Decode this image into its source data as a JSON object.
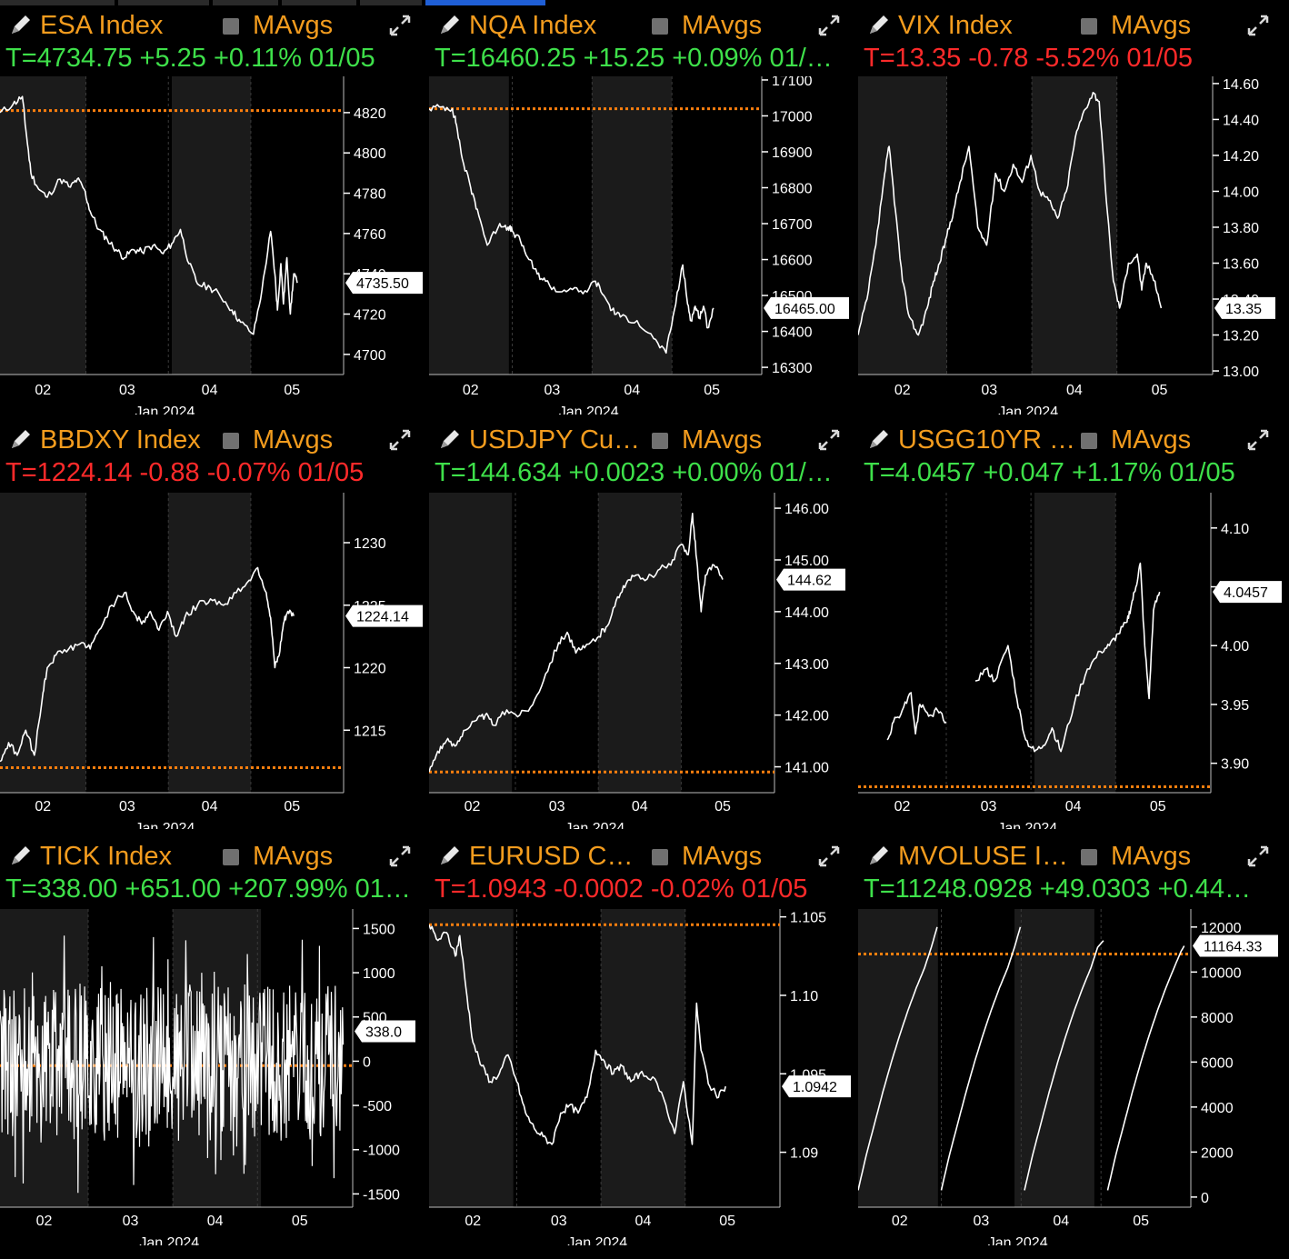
{
  "colors": {
    "background": "#000000",
    "title": "#f39c1e",
    "up": "#3ee04a",
    "down": "#ff2a2a",
    "series": "#ffffff",
    "ma_line": "#ff7f0e",
    "session_shade": "#1b1b1b"
  },
  "ma_label": "MAvgs",
  "month_label": "Jan 2024",
  "days": [
    "02",
    "03",
    "04",
    "05"
  ],
  "panels": [
    {
      "title": "ESA Index",
      "quote": "T=4734.75 +5.25 +0.11% 01/05",
      "direction": "up",
      "last_tag": "4735.50"
    },
    {
      "title": "NQA Index",
      "quote": "T=16460.25 +15.25 +0.09% 01/…",
      "direction": "up",
      "last_tag": "16465.00"
    },
    {
      "title": "VIX Index",
      "quote": "T=13.35 -0.78 -5.52% 01/05",
      "direction": "down",
      "last_tag": "13.35"
    },
    {
      "title": "BBDXY Index",
      "quote": "T=1224.14 -0.88 -0.07% 01/05",
      "direction": "down",
      "last_tag": "1224.14"
    },
    {
      "title": "USDJPY Cur…",
      "quote": "T=144.634 +0.0023 +0.00% 01/…",
      "direction": "up",
      "last_tag": "144.62"
    },
    {
      "title": "USGG10YR I…",
      "quote": "T=4.0457 +0.047 +1.17% 01/05",
      "direction": "up",
      "last_tag": "4.0457"
    },
    {
      "title": "TICK Index",
      "quote": "T=338.00 +651.00 +207.99% 01…",
      "direction": "up",
      "last_tag": "338.0"
    },
    {
      "title": "EURUSD Cur…",
      "quote": "T=1.0943 -0.0002 -0.02% 01/05",
      "direction": "down",
      "last_tag": "1.0942"
    },
    {
      "title": "MVOLUSE In…",
      "quote": "T=11248.0928 +49.0303 +0.44…",
      "direction": "up",
      "last_tag": "11164.33"
    }
  ],
  "chart_data": [
    {
      "type": "line",
      "title": "ESA Index",
      "xlabel": "Jan 2024",
      "x_ticks": [
        "02",
        "03",
        "04",
        "05"
      ],
      "ylim": [
        4690,
        4838
      ],
      "y_ticks": [
        "4820",
        "4800",
        "4780",
        "4760",
        "4740",
        "4720",
        "4700"
      ],
      "ma_level": 4821,
      "series": [
        {
          "x": [
            0.0,
            0.15,
            0.26,
            0.3,
            0.36,
            0.45,
            0.55,
            0.7,
            0.82,
            0.9,
            0.98,
            1.05,
            1.15,
            1.25,
            1.35,
            1.45,
            1.55,
            1.65,
            1.78,
            1.9,
            2.0,
            2.1,
            2.2,
            2.3,
            2.45,
            2.55,
            2.7,
            2.8,
            2.95,
            3.05,
            3.15,
            3.2,
            3.23,
            3.27,
            3.3,
            3.34,
            3.38,
            3.42,
            3.46
          ],
          "y": [
            4820,
            4824,
            4828,
            4812,
            4790,
            4782,
            4778,
            4787,
            4783,
            4787,
            4782,
            4771,
            4762,
            4757,
            4752,
            4748,
            4752,
            4751,
            4754,
            4750,
            4755,
            4762,
            4745,
            4735,
            4733,
            4730,
            4722,
            4716,
            4710,
            4732,
            4761,
            4740,
            4722,
            4745,
            4725,
            4748,
            4720,
            4740,
            4735.5
          ]
        }
      ]
    },
    {
      "type": "line",
      "title": "NQA Index",
      "xlabel": "Jan 2024",
      "x_ticks": [
        "02",
        "03",
        "04",
        "05"
      ],
      "ylim": [
        16280,
        17110
      ],
      "y_ticks": [
        "17100",
        "17000",
        "16900",
        "16800",
        "16700",
        "16600",
        "16500",
        "16400",
        "16300"
      ],
      "ma_level": 17020,
      "series": [
        {
          "x": [
            0.0,
            0.15,
            0.28,
            0.33,
            0.4,
            0.5,
            0.58,
            0.7,
            0.85,
            0.95,
            1.0,
            1.1,
            1.2,
            1.3,
            1.4,
            1.55,
            1.7,
            1.85,
            2.0,
            2.1,
            2.2,
            2.3,
            2.5,
            2.7,
            2.85,
            2.95,
            3.05,
            3.1,
            3.15,
            3.2,
            3.25,
            3.3,
            3.35,
            3.42
          ],
          "y": [
            17020,
            17025,
            17020,
            16975,
            16880,
            16800,
            16740,
            16640,
            16700,
            16690,
            16680,
            16650,
            16600,
            16560,
            16540,
            16510,
            16520,
            16505,
            16540,
            16500,
            16460,
            16440,
            16430,
            16380,
            16340,
            16460,
            16585,
            16490,
            16430,
            16470,
            16440,
            16470,
            16410,
            16465
          ]
        }
      ]
    },
    {
      "type": "line",
      "title": "VIX Index",
      "xlabel": "Jan 2024",
      "x_ticks": [
        "02",
        "03",
        "04",
        "05"
      ],
      "ylim": [
        12.98,
        14.64
      ],
      "y_ticks": [
        "14.60",
        "14.40",
        "14.20",
        "14.00",
        "13.80",
        "13.60",
        "13.40",
        "13.20",
        "13.00"
      ],
      "ma_level": null,
      "series": [
        {
          "x": [
            0.0,
            0.1,
            0.2,
            0.3,
            0.35,
            0.42,
            0.5,
            0.58,
            0.68,
            0.78,
            0.85,
            0.92,
            1.0,
            1.08,
            1.15,
            1.25,
            1.35,
            1.45,
            1.55,
            1.65,
            1.75,
            1.85,
            1.95,
            2.05,
            2.15,
            2.25,
            2.35,
            2.45,
            2.55,
            2.65,
            2.72,
            2.8,
            2.88,
            2.95,
            3.05,
            3.15,
            3.2,
            3.25,
            3.35,
            3.42
          ],
          "y": [
            13.2,
            13.4,
            13.7,
            14.1,
            14.25,
            13.9,
            13.5,
            13.3,
            13.2,
            13.35,
            13.5,
            13.6,
            13.75,
            13.9,
            14.05,
            14.25,
            13.8,
            13.7,
            14.1,
            14.0,
            14.15,
            14.05,
            14.2,
            14.0,
            13.95,
            13.85,
            14.0,
            14.3,
            14.45,
            14.55,
            14.5,
            13.95,
            13.5,
            13.35,
            13.6,
            13.65,
            13.45,
            13.6,
            13.5,
            13.35
          ]
        }
      ]
    },
    {
      "type": "line",
      "title": "BBDXY Index",
      "xlabel": "Jan 2024",
      "x_ticks": [
        "02",
        "03",
        "04",
        "05"
      ],
      "ylim": [
        1210,
        1234
      ],
      "y_ticks": [
        "1230",
        "1225",
        "1220",
        "1215"
      ],
      "ma_level": 1212,
      "series": [
        {
          "x": [
            0.0,
            0.1,
            0.2,
            0.3,
            0.4,
            0.5,
            0.55,
            0.65,
            0.8,
            0.95,
            1.05,
            1.15,
            1.3,
            1.45,
            1.55,
            1.65,
            1.75,
            1.85,
            1.95,
            2.05,
            2.15,
            2.3,
            2.45,
            2.6,
            2.75,
            2.9,
            3.0,
            3.1,
            3.15,
            3.2,
            3.25,
            3.3,
            3.35,
            3.42
          ],
          "y": [
            1212.5,
            1214,
            1213,
            1215,
            1213,
            1218,
            1220,
            1221,
            1221.5,
            1222,
            1221.5,
            1223,
            1225,
            1226,
            1224.5,
            1223.5,
            1224.5,
            1223,
            1224.5,
            1222.5,
            1224,
            1225,
            1225.5,
            1225,
            1226,
            1227,
            1228,
            1226,
            1224,
            1220,
            1221,
            1223.5,
            1224.5,
            1224.14
          ]
        }
      ]
    },
    {
      "type": "line",
      "title": "USDJPY Cur…",
      "xlabel": "Jan 2024",
      "x_ticks": [
        "02",
        "03",
        "04",
        "05"
      ],
      "ylim": [
        140.5,
        146.3
      ],
      "y_ticks": [
        "146.00",
        "145.00",
        "144.00",
        "143.00",
        "142.00",
        "141.00"
      ],
      "ma_level": 140.9,
      "series": [
        {
          "x": [
            0.0,
            0.1,
            0.2,
            0.3,
            0.4,
            0.55,
            0.65,
            0.75,
            0.9,
            1.05,
            1.2,
            1.35,
            1.5,
            1.6,
            1.7,
            1.8,
            1.95,
            2.05,
            2.15,
            2.25,
            2.35,
            2.5,
            2.65,
            2.8,
            2.92,
            3.0,
            3.05,
            3.1,
            3.15,
            3.2,
            3.3,
            3.4
          ],
          "y": [
            140.9,
            141.3,
            141.5,
            141.4,
            141.7,
            141.9,
            142.0,
            141.8,
            142.1,
            142.0,
            142.2,
            142.8,
            143.4,
            143.6,
            143.2,
            143.3,
            143.5,
            143.7,
            144.1,
            144.5,
            144.7,
            144.6,
            144.8,
            144.9,
            145.3,
            145.1,
            145.9,
            145.0,
            144.0,
            144.7,
            144.9,
            144.62
          ]
        }
      ]
    },
    {
      "type": "line",
      "title": "USGG10YR I…",
      "xlabel": "Jan 2024",
      "x_ticks": [
        "02",
        "03",
        "04",
        "05"
      ],
      "ylim": [
        3.875,
        4.13
      ],
      "y_ticks": [
        "4.10",
        "4.05",
        "4.00",
        "3.95",
        "3.90"
      ],
      "ma_level": 3.88,
      "series": [
        {
          "x": [
            0.33,
            0.4,
            0.5,
            0.6,
            0.65,
            0.7,
            0.8,
            0.9,
            1.0
          ],
          "y": [
            3.92,
            3.935,
            3.945,
            3.96,
            3.925,
            3.95,
            3.94,
            3.945,
            3.935
          ]
        },
        {
          "x": [
            1.33,
            1.45,
            1.55,
            1.7,
            1.8,
            1.9,
            2.0,
            2.1,
            2.2,
            2.3,
            2.45,
            2.6,
            2.75,
            2.85,
            2.95,
            3.05,
            3.1,
            3.15,
            3.2,
            3.25,
            3.3,
            3.35,
            3.42
          ],
          "y": [
            3.97,
            3.98,
            3.97,
            4.0,
            3.955,
            3.92,
            3.91,
            3.915,
            3.93,
            3.91,
            3.95,
            3.98,
            3.995,
            4.0,
            4.01,
            4.02,
            4.035,
            4.05,
            4.07,
            4.0,
            3.955,
            4.03,
            4.0457
          ]
        }
      ]
    },
    {
      "type": "line",
      "title": "TICK Index",
      "xlabel": "Jan 2024",
      "x_ticks": [
        "02",
        "03",
        "04",
        "05"
      ],
      "ylim": [
        -1650,
        1720
      ],
      "y_ticks": [
        "1500",
        "1000",
        "500",
        "0",
        "-500",
        "-1000",
        "-1500"
      ],
      "ma_level": -50,
      "series": [
        {
          "x": [],
          "y": []
        }
      ]
    },
    {
      "type": "line",
      "title": "EURUSD Cur…",
      "xlabel": "Jan 2024",
      "x_ticks": [
        "02",
        "03",
        "04",
        "05"
      ],
      "ylim": [
        1.0865,
        1.1055
      ],
      "y_ticks": [
        "1.105",
        "1.10",
        "1.095",
        "1.09"
      ],
      "ma_level": 1.1045,
      "series": [
        {
          "x": [
            0.0,
            0.1,
            0.2,
            0.3,
            0.35,
            0.42,
            0.5,
            0.6,
            0.7,
            0.8,
            0.9,
            1.0,
            1.1,
            1.2,
            1.3,
            1.4,
            1.5,
            1.6,
            1.7,
            1.8,
            1.9,
            2.0,
            2.1,
            2.2,
            2.3,
            2.4,
            2.55,
            2.7,
            2.8,
            2.9,
            3.0,
            3.05,
            3.1,
            3.2,
            3.3,
            3.38
          ],
          "y": [
            1.1045,
            1.1035,
            1.104,
            1.1025,
            1.1038,
            1.1005,
            1.097,
            1.0955,
            1.0945,
            1.095,
            1.0962,
            1.0945,
            1.0925,
            1.0915,
            1.091,
            1.0905,
            1.0925,
            1.093,
            1.0925,
            1.0935,
            1.0965,
            1.0958,
            1.095,
            1.0955,
            1.0945,
            1.095,
            1.0948,
            1.093,
            1.0912,
            1.0945,
            1.0905,
            1.0995,
            1.0965,
            1.0942,
            1.0935,
            1.0942
          ]
        }
      ]
    },
    {
      "type": "line",
      "title": "MVOLUSE In…",
      "xlabel": "Jan 2024",
      "x_ticks": [
        "02",
        "03",
        "04",
        "05"
      ],
      "ylim": [
        -450,
        12800
      ],
      "y_ticks": [
        "12000",
        "10000",
        "8000",
        "6000",
        "4000",
        "2000",
        "0"
      ],
      "ma_level": 10800,
      "series": [
        {
          "x": [
            0.0,
            0.1,
            0.2,
            0.3,
            0.4,
            0.5,
            0.6,
            0.7,
            0.8,
            0.88,
            0.95
          ],
          "y": [
            300,
            1900,
            3300,
            4700,
            6000,
            7200,
            8300,
            9300,
            10200,
            11100,
            12000
          ]
        },
        {
          "x": [
            1.0,
            1.1,
            1.2,
            1.3,
            1.4,
            1.5,
            1.6,
            1.7,
            1.8,
            1.88,
            1.95
          ],
          "y": [
            300,
            1900,
            3300,
            4700,
            6000,
            7200,
            8300,
            9300,
            10200,
            11100,
            12000
          ]
        },
        {
          "x": [
            2.0,
            2.1,
            2.2,
            2.3,
            2.4,
            2.5,
            2.6,
            2.7,
            2.8,
            2.88,
            2.95
          ],
          "y": [
            300,
            1900,
            3300,
            4700,
            6000,
            7200,
            8300,
            9300,
            10200,
            11100,
            11400
          ]
        },
        {
          "x": [
            3.0,
            3.1,
            3.2,
            3.3,
            3.4,
            3.5,
            3.6,
            3.7,
            3.8,
            3.88,
            3.92
          ],
          "y": [
            300,
            1900,
            3300,
            4700,
            6000,
            7200,
            8300,
            9300,
            10200,
            10900,
            11164
          ]
        }
      ]
    }
  ]
}
